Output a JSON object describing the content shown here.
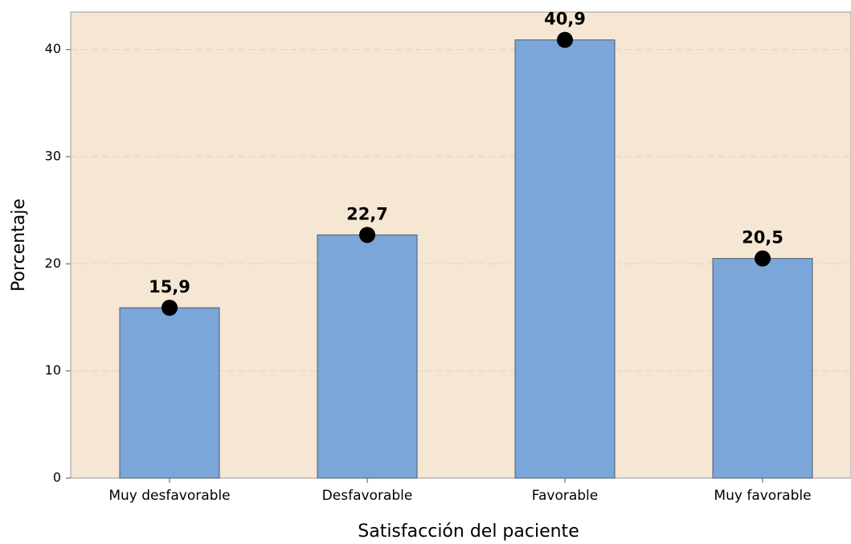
{
  "chart_data": {
    "type": "bar",
    "categories": [
      "Muy desfavorable",
      "Desfavorable",
      "Favorable",
      "Muy favorable"
    ],
    "values": [
      15.9,
      22.7,
      40.9,
      20.5
    ],
    "value_labels": [
      "15,9",
      "22,7",
      "40,9",
      "20,5"
    ],
    "color": "#7ba6d9",
    "marker_color": "#000000",
    "plot_background": "#f5e7d3",
    "x_label": "Satisfacción del paciente",
    "y_label": "Porcentaje",
    "ylim": [
      0,
      43.5
    ],
    "yticks": [
      0,
      10,
      20,
      30,
      40
    ],
    "grid": true
  }
}
